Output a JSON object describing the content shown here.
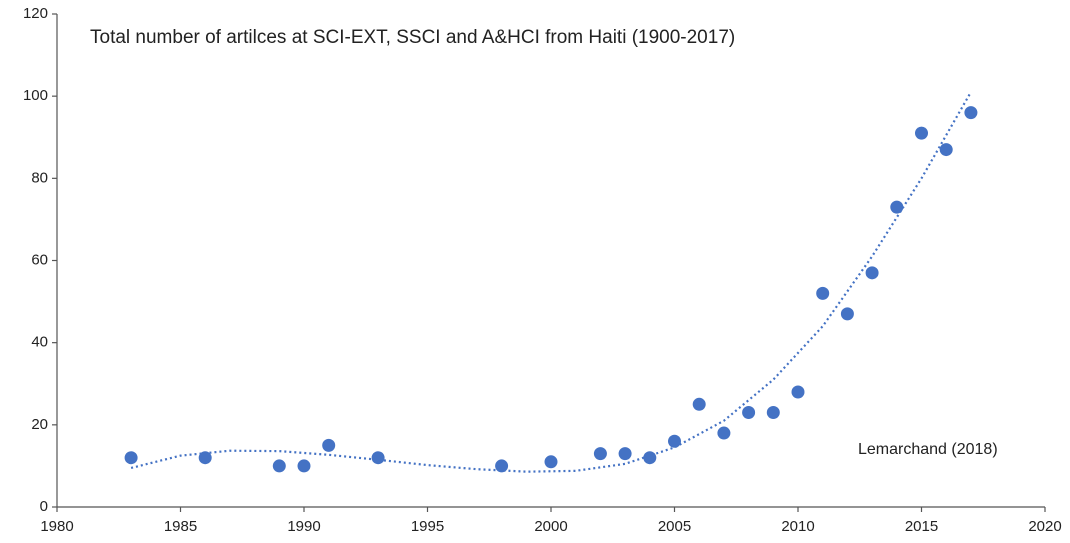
{
  "chart_data": {
    "type": "scatter",
    "title": "Total number of artilces at SCI-EXT, SSCI and A&HCI from Haiti (1900-2017)",
    "annotation": "Lemarchand (2018)",
    "color": "#4472c4",
    "x": [
      1983,
      1986,
      1989,
      1990,
      1991,
      1993,
      1998,
      2000,
      2002,
      2003,
      2004,
      2005,
      2006,
      2007,
      2008,
      2009,
      2010,
      2011,
      2012,
      2013,
      2014,
      2015,
      2016,
      2017
    ],
    "values": [
      12,
      12,
      10,
      10,
      15,
      12,
      10,
      11,
      13,
      13,
      12,
      16,
      25,
      18,
      23,
      23,
      28,
      52,
      47,
      57,
      73,
      91,
      87,
      96
    ],
    "trendline": {
      "color": "#4472c4",
      "x": [
        1983,
        1985,
        1987,
        1989,
        1991,
        1993,
        1995,
        1997,
        1999,
        2001,
        2003,
        2005,
        2007,
        2009,
        2011,
        2013,
        2015,
        2017
      ],
      "values": [
        9.5,
        12.5,
        13.7,
        13.6,
        12.7,
        11.5,
        10.2,
        9.2,
        8.6,
        8.8,
        10.5,
        14.5,
        21,
        31,
        44,
        61,
        80,
        101
      ]
    },
    "xlim": [
      1980,
      2020
    ],
    "xticks": [
      1980,
      1985,
      1990,
      1995,
      2000,
      2005,
      2010,
      2015,
      2020
    ],
    "ylim": [
      0,
      120
    ],
    "yticks": [
      0,
      20,
      40,
      60,
      80,
      100,
      120
    ],
    "grid": false
  }
}
